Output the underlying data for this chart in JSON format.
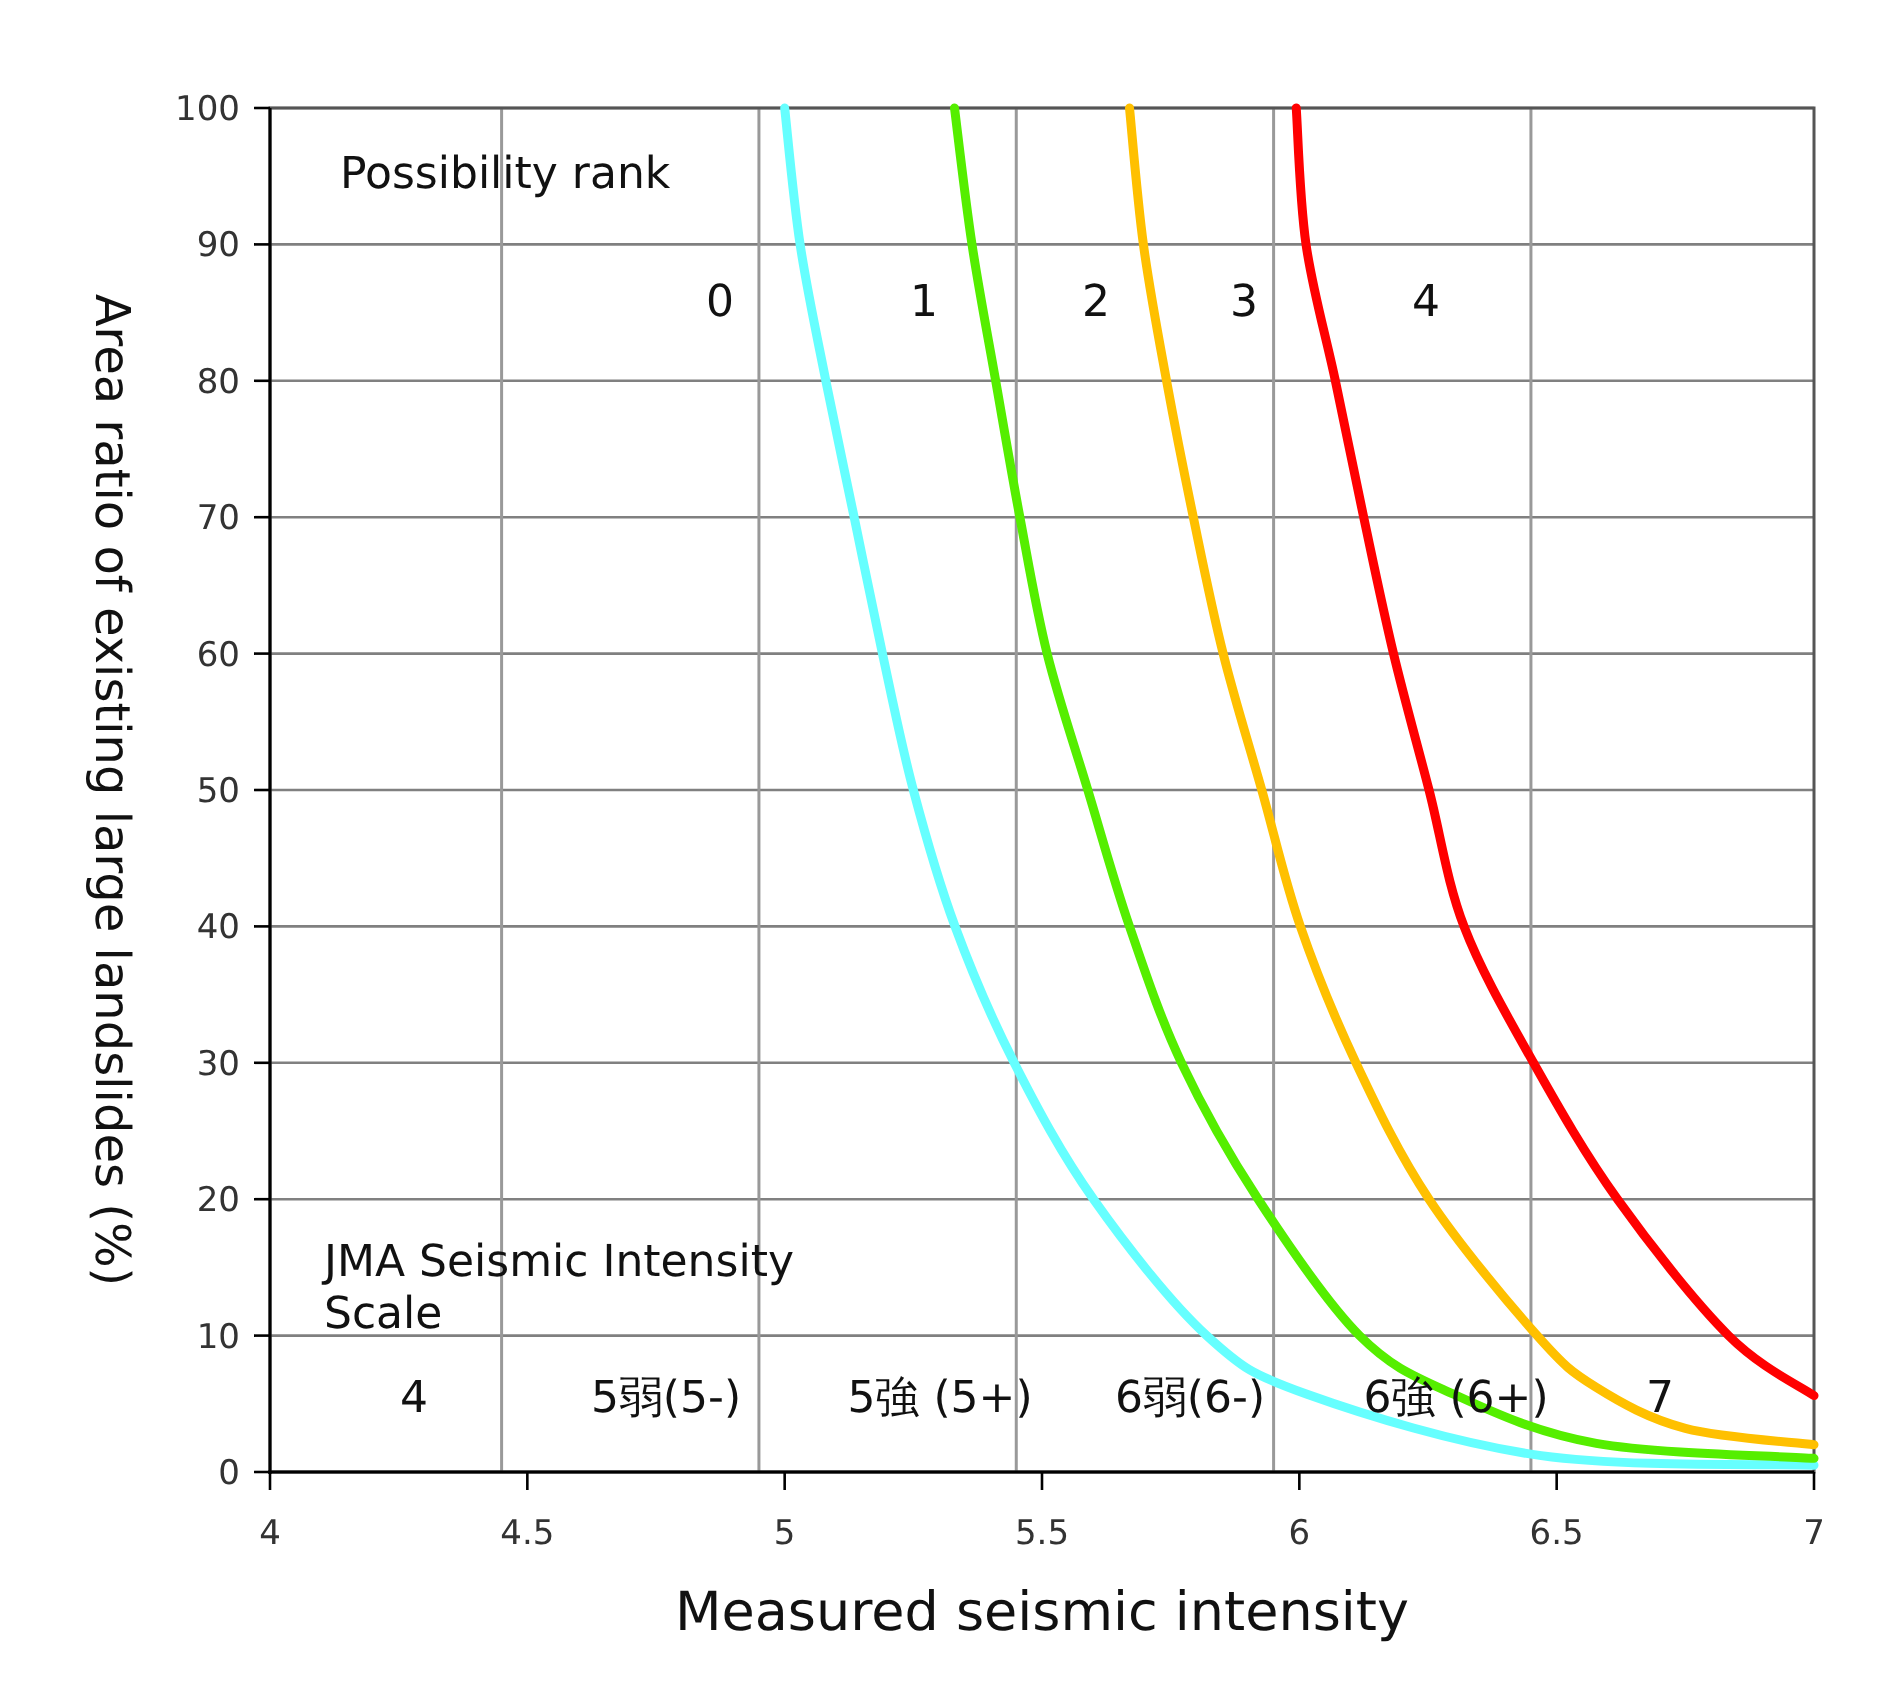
{
  "chart_data": {
    "type": "line",
    "xlabel": "Measured seismic intensity",
    "ylabel": "Area ratio of existing large landslides (%)",
    "xlim": [
      4,
      7
    ],
    "xticks": [
      4,
      4.5,
      5,
      5.5,
      6,
      6.5,
      7
    ],
    "ylim": [
      0,
      100
    ],
    "yticks": [
      0,
      10,
      20,
      30,
      40,
      50,
      60,
      70,
      80,
      90,
      100
    ],
    "grid": "y",
    "marker": "none",
    "line_style": "solid",
    "ref_lines": [
      {
        "axis": "x",
        "value": 4.45,
        "color": "#999999"
      },
      {
        "axis": "x",
        "value": 4.95,
        "color": "#999999"
      },
      {
        "axis": "x",
        "value": 5.45,
        "color": "#999999"
      },
      {
        "axis": "x",
        "value": 5.95,
        "color": "#999999"
      },
      {
        "axis": "x",
        "value": 6.45,
        "color": "#999999"
      }
    ],
    "series": [
      {
        "color": "#66ffff",
        "x": [
          5.0,
          5.03,
          5.08,
          5.135,
          5.19,
          5.25,
          5.331,
          5.446,
          5.6,
          5.82,
          6.015,
          6.47,
          7.0
        ],
        "values": [
          100,
          90,
          80,
          70,
          60,
          50,
          40,
          30,
          20,
          10,
          5.7,
          1.2,
          0.5
        ]
      },
      {
        "color": "#55ee00",
        "x": [
          5.33,
          5.364,
          5.41,
          5.457,
          5.51,
          5.589,
          5.67,
          5.771,
          5.92,
          6.117,
          6.3,
          6.577,
          7.0
        ],
        "values": [
          100,
          90,
          80,
          70,
          60,
          50,
          40,
          30,
          20,
          10,
          5.7,
          2.1,
          1.0
        ]
      },
      {
        "color": "#ffc000",
        "x": [
          5.67,
          5.697,
          5.742,
          5.794,
          5.852,
          5.927,
          6.002,
          6.11,
          6.252,
          6.462,
          6.577,
          6.75,
          7.0
        ],
        "values": [
          100,
          90,
          80,
          70,
          60,
          50,
          40,
          30,
          20,
          10,
          6.2,
          3.2,
          2.0
        ]
      },
      {
        "color": "#ff0000",
        "x": [
          5.994,
          6.013,
          6.07,
          6.125,
          6.183,
          6.252,
          6.32,
          6.455,
          6.618,
          6.834,
          7.0
        ],
        "values": [
          100,
          90,
          80,
          70,
          60,
          50,
          40,
          30,
          20,
          10,
          5.6
        ]
      }
    ],
    "annotations": [
      "Possibility rank",
      "0",
      "1",
      "2",
      "3",
      "4",
      "JMA Seismic Intensity Scale",
      "4",
      "5弱(5-)",
      "5強 (5+)",
      "6弱(6-)",
      "6強 (6+)",
      "7"
    ]
  }
}
